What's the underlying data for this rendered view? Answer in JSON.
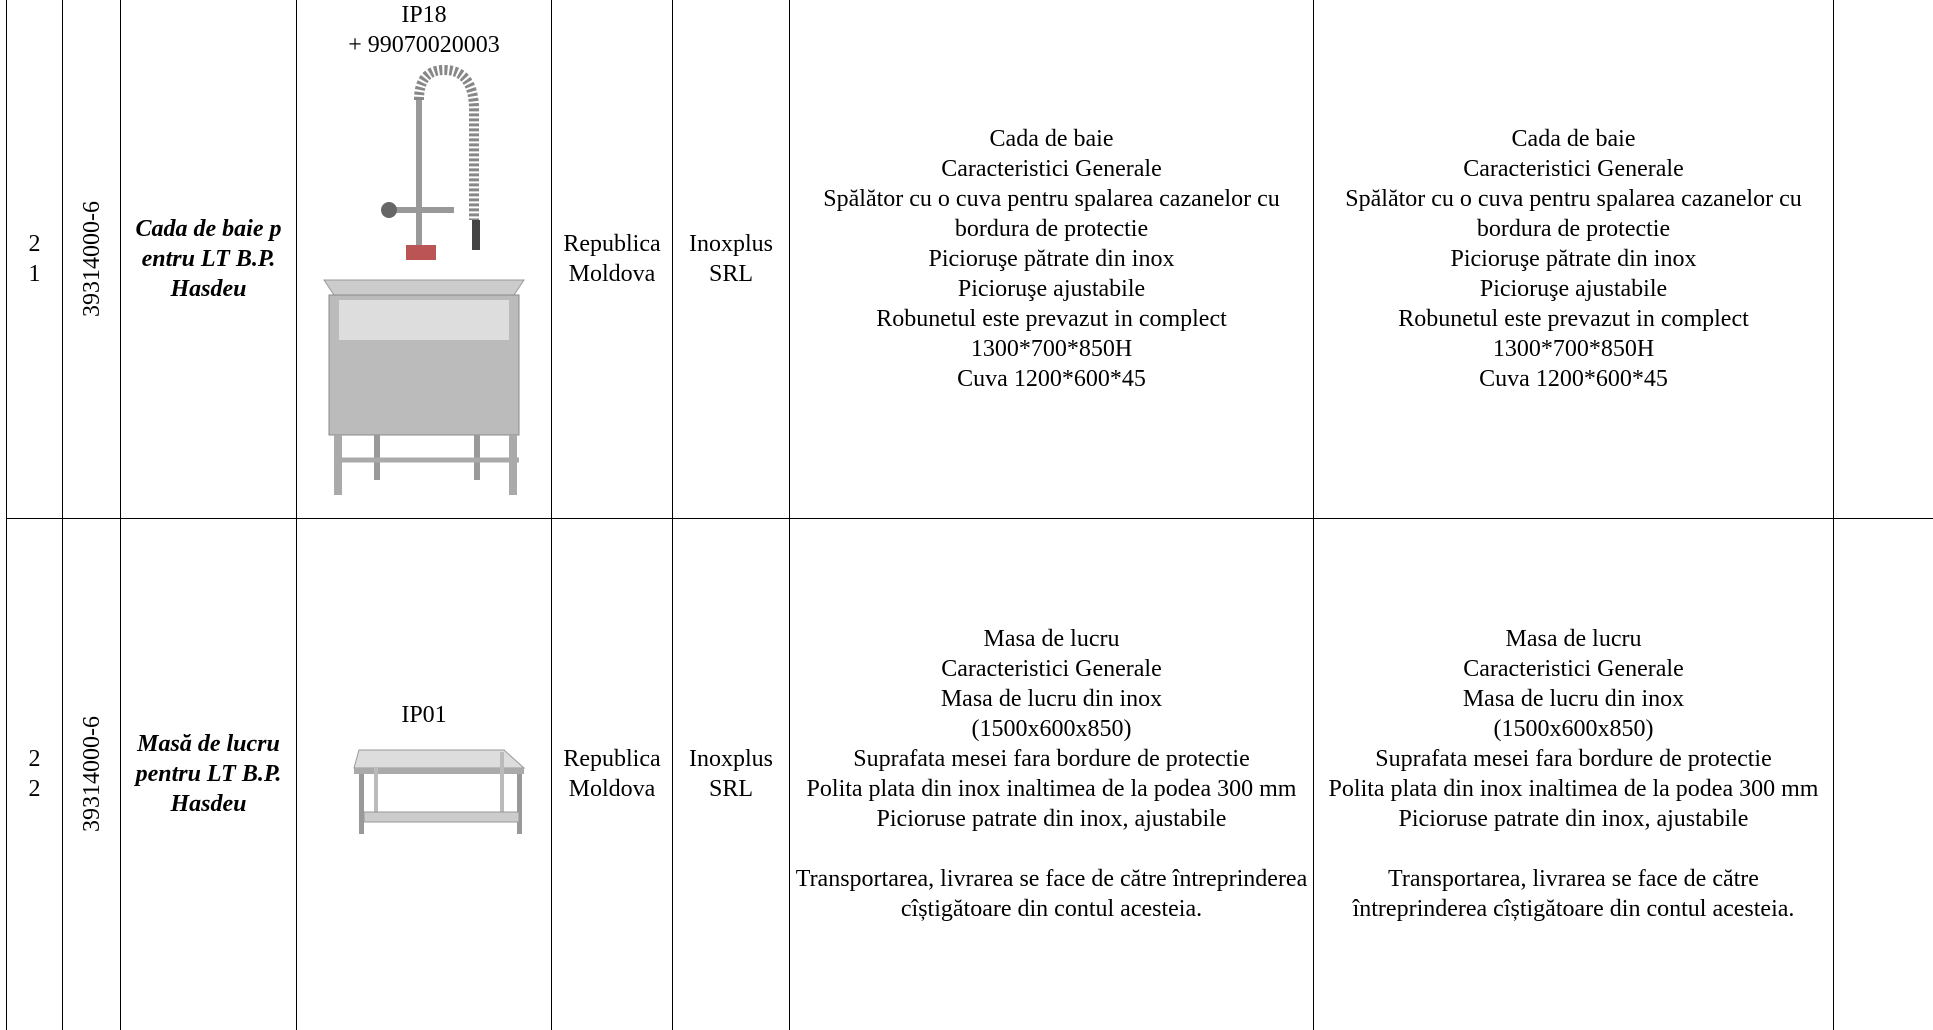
{
  "table": {
    "rows": [
      {
        "number": "21",
        "code": "39314000-6",
        "name": "Cada de baie pentru LT B.P.Hasdeu",
        "image_label": [
          "IP18",
          "+ 99070020003"
        ],
        "country": "Republica Moldova",
        "supplier": "Inoxplus SRL",
        "description_required": [
          [
            "Cada de baie",
            "Caracteristici Generale",
            "Spălător cu  o cuva pentru spalarea cazanelor cu bordura de protectie",
            "Picioruşe pătrate din inox",
            "Picioruşe ajustabile",
            "Robunetul este prevazut in complect",
            "1300*700*850H",
            "Cuva 1200*600*45"
          ]
        ],
        "description_offered": [
          [
            "Cada de baie",
            "Caracteristici Generale",
            "Spălător cu  o cuva pentru spalarea cazanelor cu bordura de protectie",
            "Picioruşe pătrate din inox",
            "Picioruşe ajustabile",
            "Robunetul este prevazut in complect",
            "1300*700*850H",
            "Cuva 1200*600*45"
          ]
        ]
      },
      {
        "number": "22",
        "code": "39314000-6",
        "name": "Masă de lucru pentru LT B.P.Hasdeu",
        "image_label": [
          "IP01"
        ],
        "country": "Republica Moldova",
        "supplier": "Inoxplus SRL",
        "description_required": [
          [
            "Masa de lucru",
            "Caracteristici Generale",
            "Masa de lucru din inox",
            "(1500x600x850)",
            "Suprafata mesei fara bordure de protectie",
            "Polita plata din inox inaltimea de la podea 300 mm",
            "Picioruse patrate din inox, ajustabile"
          ],
          [
            "Transportarea, livrarea se face de către întreprinderea cîștigătoare din contul acesteia."
          ]
        ],
        "description_offered": [
          [
            "Masa de lucru",
            "Caracteristici Generale",
            "Masa de lucru din inox",
            "(1500x600x850)",
            "Suprafata mesei fara bordure de protectie",
            "Polita plata din inox inaltimea de la podea 300 mm",
            "Picioruse patrate din inox, ajustabile"
          ],
          [
            "Transportarea, livrarea se face de către întreprinderea cîștigătoare din contul acesteia."
          ]
        ]
      }
    ]
  }
}
